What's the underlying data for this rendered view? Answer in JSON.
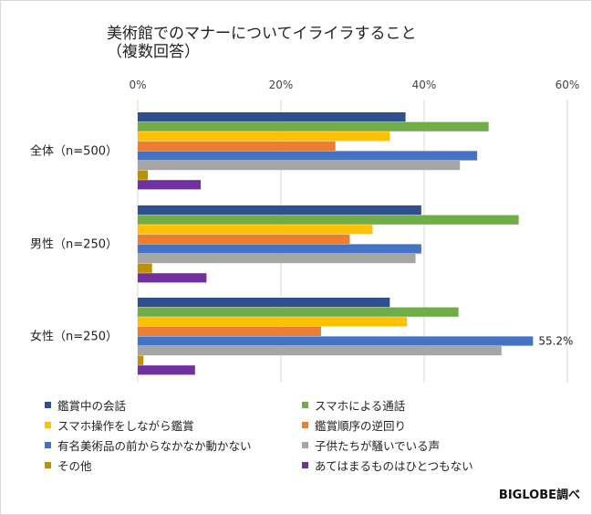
{
  "title_line1": "美術館でのマナーについてイライラすること",
  "title_line2": "（複数回答）",
  "source": "BIGLOBE調べ",
  "chart_data": {
    "type": "bar",
    "orientation": "horizontal",
    "title": "美術館でのマナーについてイライラすること（複数回答）",
    "x_ticks": [
      "0%",
      "20%",
      "40%",
      "60%"
    ],
    "xlim": [
      0,
      60
    ],
    "grid": true,
    "legend_position": "bottom",
    "categories": [
      "全体（n=500）",
      "男性（n=250）",
      "女性（n=250）"
    ],
    "series": [
      {
        "name": "鑑賞中の会話",
        "color": "#2f4f8f",
        "values": [
          37.4,
          39.6,
          35.2
        ]
      },
      {
        "name": "スマホによる通話",
        "color": "#70ad47",
        "values": [
          49.0,
          53.2,
          44.8
        ]
      },
      {
        "name": "スマホ操作をしながら鑑賞",
        "color": "#ffc000",
        "values": [
          35.2,
          32.8,
          37.6
        ]
      },
      {
        "name": "鑑賞順序の逆回り",
        "color": "#ed7d31",
        "values": [
          27.6,
          29.6,
          25.6
        ]
      },
      {
        "name": "有名美術品の前からなかなか動かない",
        "color": "#4472c4",
        "values": [
          47.4,
          39.6,
          55.2
        ]
      },
      {
        "name": "子供たちが騒いでいる声",
        "color": "#a5a5a5",
        "values": [
          45.0,
          38.8,
          50.8
        ]
      },
      {
        "name": "その他",
        "color": "#bf9000",
        "values": [
          1.4,
          2.0,
          0.8
        ]
      },
      {
        "name": "あてはまるものはひとつもない",
        "color": "#7030a0",
        "values": [
          8.8,
          9.6,
          8.0
        ]
      }
    ],
    "data_labels": [
      {
        "category": "女性（n=250）",
        "series": "有名美術品の前からなかなか動かない",
        "text": "55.2%"
      }
    ]
  }
}
